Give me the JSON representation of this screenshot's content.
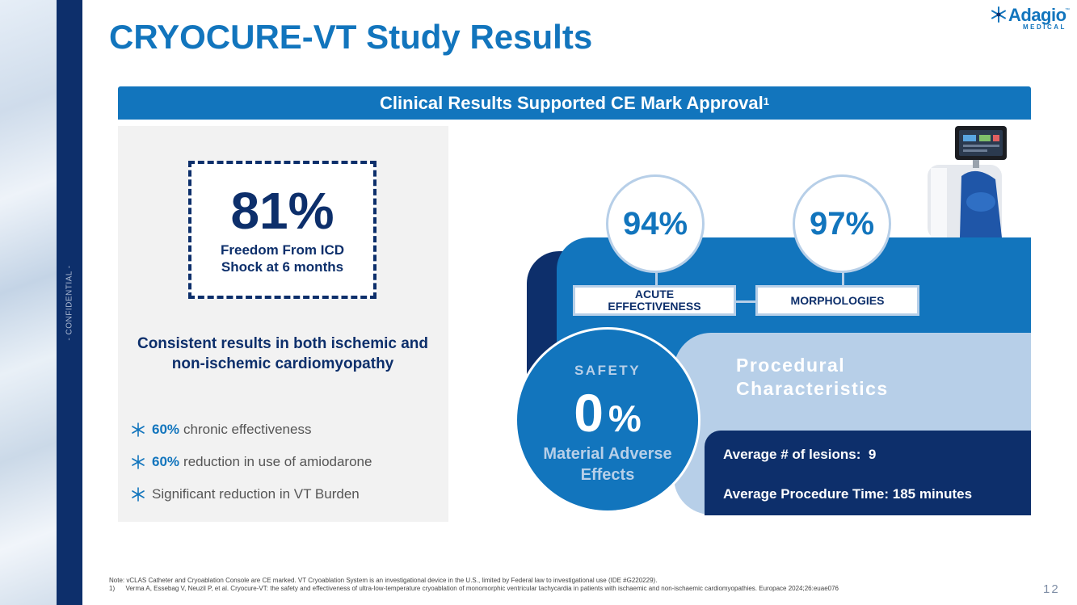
{
  "side": {
    "confidential": "- CONFIDENTIAL -"
  },
  "header": {
    "title": "CRYOCURE-VT Study Results",
    "logo": {
      "name": "Adagio",
      "tm": "™",
      "sub": "MEDICAL"
    }
  },
  "banner": {
    "text": "Clinical Results Supported CE Mark Approval",
    "ref": "1"
  },
  "left": {
    "headline_value": "81%",
    "headline_label": "Freedom From ICD Shock at 6 months",
    "consistent": "Consistent results in both ischemic and non-ischemic cardiomyopathy",
    "bullets": [
      {
        "highlight": "60%",
        "text": "chronic effectiveness"
      },
      {
        "highlight": "60%",
        "text": "reduction in use of amiodarone"
      },
      {
        "highlight": "",
        "text": "Significant reduction in VT Burden"
      }
    ]
  },
  "graphic": {
    "acute": {
      "value": "94%",
      "label": "ACUTE EFFECTIVENESS"
    },
    "morph": {
      "value": "97%",
      "label": "MORPHOLOGIES"
    },
    "safety": {
      "label": "SAFETY",
      "value": "0",
      "unit": "%",
      "desc": "Material Adverse Effects"
    },
    "procedural": {
      "title": "Procedural Characteristics",
      "lesions": "Average # of lesions:  9",
      "time": "Average Procedure Time: 185 minutes"
    }
  },
  "footer": {
    "note": "Note: vCLAS Catheter and Cryoablation Console are CE marked. VT Cryoablation System is an investigational device in the U.S., limited by Federal law to investigational use (IDE #G220229).",
    "ref": "1)      Verma A, Essebag V, Neuzil P, et al. Cryocure-VT: the safety and effectiveness of ultra-low-temperature cryoablation of monomorphic ventricular tachycardia in patients with ischaemic and non-ischaemic cardiomyopathies. Europace 2024;26:euae076",
    "page": "12"
  },
  "colors": {
    "navy": "#0d2f6b",
    "brand_blue": "#1275bd",
    "light_blue": "#b7cfe8"
  }
}
